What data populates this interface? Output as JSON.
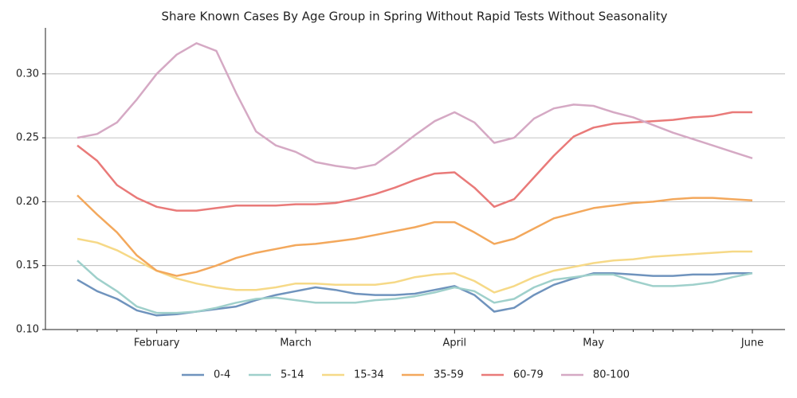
{
  "chart_data": {
    "type": "line",
    "title": "Share Known Cases By Age Group in Spring Without Rapid Tests Without Seasonality",
    "categories": [
      null,
      null,
      null,
      null,
      "February",
      null,
      null,
      null,
      null,
      null,
      null,
      "March",
      null,
      null,
      null,
      null,
      null,
      null,
      null,
      "April",
      null,
      null,
      null,
      null,
      null,
      null,
      "May",
      null,
      null,
      null,
      null,
      null,
      null,
      null,
      "June"
    ],
    "series": [
      {
        "name": "0-4",
        "color": "#6f93bd",
        "values": [
          0.139,
          0.13,
          0.124,
          0.115,
          0.111,
          0.112,
          0.114,
          0.116,
          0.118,
          0.123,
          0.127,
          0.13,
          0.133,
          0.131,
          0.128,
          0.127,
          0.127,
          0.128,
          0.131,
          0.134,
          0.127,
          0.114,
          0.117,
          0.127,
          0.135,
          0.14,
          0.144,
          0.144,
          0.143,
          0.142,
          0.142,
          0.143,
          0.143,
          0.144,
          0.144
        ]
      },
      {
        "name": "5-14",
        "color": "#9fd0cb",
        "values": [
          0.154,
          0.14,
          0.13,
          0.118,
          0.113,
          0.113,
          0.114,
          0.117,
          0.121,
          0.124,
          0.125,
          0.123,
          0.121,
          0.121,
          0.121,
          0.123,
          0.124,
          0.126,
          0.129,
          0.133,
          0.13,
          0.121,
          0.124,
          0.133,
          0.139,
          0.141,
          0.143,
          0.143,
          0.138,
          0.134,
          0.134,
          0.135,
          0.137,
          0.141,
          0.144
        ]
      },
      {
        "name": "15-34",
        "color": "#f6d987",
        "values": [
          0.171,
          0.168,
          0.162,
          0.154,
          0.146,
          0.14,
          0.136,
          0.133,
          0.131,
          0.131,
          0.133,
          0.136,
          0.136,
          0.135,
          0.135,
          0.135,
          0.137,
          0.141,
          0.143,
          0.144,
          0.138,
          0.129,
          0.134,
          0.141,
          0.146,
          0.149,
          0.152,
          0.154,
          0.155,
          0.157,
          0.158,
          0.159,
          0.16,
          0.161,
          0.161
        ]
      },
      {
        "name": "35-59",
        "color": "#f3a85c",
        "values": [
          0.205,
          0.19,
          0.176,
          0.158,
          0.146,
          0.142,
          0.145,
          0.15,
          0.156,
          0.16,
          0.163,
          0.166,
          0.167,
          0.169,
          0.171,
          0.174,
          0.177,
          0.18,
          0.184,
          0.184,
          0.176,
          0.167,
          0.171,
          0.179,
          0.187,
          0.191,
          0.195,
          0.197,
          0.199,
          0.2,
          0.202,
          0.203,
          0.203,
          0.202,
          0.201
        ]
      },
      {
        "name": "60-79",
        "color": "#e97a79",
        "values": [
          0.244,
          0.232,
          0.213,
          0.203,
          0.196,
          0.193,
          0.193,
          0.195,
          0.197,
          0.197,
          0.197,
          0.198,
          0.198,
          0.199,
          0.202,
          0.206,
          0.211,
          0.217,
          0.222,
          0.223,
          0.211,
          0.196,
          0.202,
          0.219,
          0.236,
          0.251,
          0.258,
          0.261,
          0.262,
          0.263,
          0.264,
          0.266,
          0.267,
          0.27,
          0.27
        ]
      },
      {
        "name": "80-100",
        "color": "#d5a9c4",
        "values": [
          0.25,
          0.253,
          0.262,
          0.28,
          0.3,
          0.315,
          0.324,
          0.318,
          0.285,
          0.255,
          0.244,
          0.239,
          0.231,
          0.228,
          0.226,
          0.229,
          0.24,
          0.252,
          0.263,
          0.27,
          0.262,
          0.246,
          0.25,
          0.265,
          0.273,
          0.276,
          0.275,
          0.27,
          0.266,
          0.26,
          0.254,
          0.249,
          0.244,
          0.239,
          0.234
        ]
      }
    ],
    "ylim": [
      0.1,
      0.336
    ],
    "yticks": [
      {
        "value": 0.1,
        "label": "0.10"
      },
      {
        "value": 0.15,
        "label": "0.15"
      },
      {
        "value": 0.2,
        "label": "0.20"
      },
      {
        "value": 0.25,
        "label": "0.25"
      },
      {
        "value": 0.3,
        "label": "0.30"
      }
    ],
    "grid": true,
    "legend": "bottom"
  }
}
